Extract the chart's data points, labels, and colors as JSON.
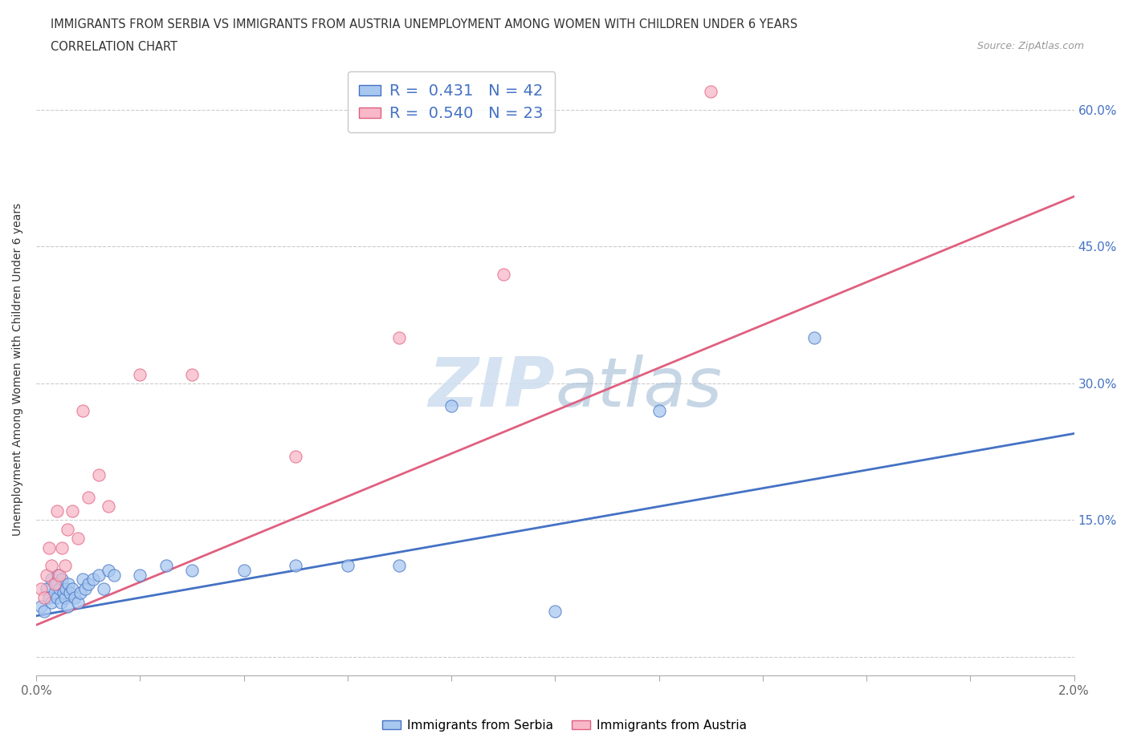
{
  "title_line1": "IMMIGRANTS FROM SERBIA VS IMMIGRANTS FROM AUSTRIA UNEMPLOYMENT AMONG WOMEN WITH CHILDREN UNDER 6 YEARS",
  "title_line2": "CORRELATION CHART",
  "source_text": "Source: ZipAtlas.com",
  "ylabel": "Unemployment Among Women with Children Under 6 years",
  "xlim": [
    0.0,
    0.02
  ],
  "ylim": [
    -0.02,
    0.65
  ],
  "x_ticks": [
    0.0,
    0.002,
    0.004,
    0.006,
    0.008,
    0.01,
    0.012,
    0.014,
    0.016,
    0.018,
    0.02
  ],
  "x_tick_labels": [
    "0.0%",
    "",
    "",
    "",
    "",
    "",
    "",
    "",
    "",
    "",
    "2.0%"
  ],
  "y_ticks": [
    0.0,
    0.15,
    0.3,
    0.45,
    0.6
  ],
  "y_tick_labels": [
    "",
    "15.0%",
    "30.0%",
    "45.0%",
    "60.0%"
  ],
  "serbia_color": "#A8C8F0",
  "austria_color": "#F8B8C8",
  "serbia_R": 0.431,
  "serbia_N": 42,
  "austria_R": 0.54,
  "austria_N": 23,
  "serbia_line_color": "#4472C4",
  "austria_line_color": "#E06080",
  "legend_R_color": "#4472C4",
  "watermark_color": "#D0DFF0",
  "serbia_x": [
    0.0001,
    0.00015,
    0.0002,
    0.00025,
    0.0003,
    0.0003,
    0.00035,
    0.00038,
    0.0004,
    0.00042,
    0.00045,
    0.00048,
    0.0005,
    0.00052,
    0.00055,
    0.00058,
    0.0006,
    0.00062,
    0.00065,
    0.0007,
    0.00075,
    0.0008,
    0.00085,
    0.0009,
    0.00095,
    0.001,
    0.0011,
    0.0012,
    0.0013,
    0.0014,
    0.0015,
    0.002,
    0.0025,
    0.003,
    0.004,
    0.005,
    0.006,
    0.007,
    0.008,
    0.01,
    0.012,
    0.015
  ],
  "serbia_y": [
    0.055,
    0.05,
    0.075,
    0.065,
    0.06,
    0.085,
    0.07,
    0.08,
    0.065,
    0.09,
    0.075,
    0.06,
    0.085,
    0.07,
    0.065,
    0.075,
    0.055,
    0.08,
    0.07,
    0.075,
    0.065,
    0.06,
    0.07,
    0.085,
    0.075,
    0.08,
    0.085,
    0.09,
    0.075,
    0.095,
    0.09,
    0.09,
    0.1,
    0.095,
    0.095,
    0.1,
    0.1,
    0.1,
    0.275,
    0.05,
    0.27,
    0.35
  ],
  "austria_x": [
    0.0001,
    0.00015,
    0.0002,
    0.00025,
    0.0003,
    0.00035,
    0.0004,
    0.00045,
    0.0005,
    0.00055,
    0.0006,
    0.0007,
    0.0008,
    0.0009,
    0.001,
    0.0012,
    0.0014,
    0.002,
    0.003,
    0.005,
    0.007,
    0.009,
    0.013
  ],
  "austria_y": [
    0.075,
    0.065,
    0.09,
    0.12,
    0.1,
    0.08,
    0.16,
    0.09,
    0.12,
    0.1,
    0.14,
    0.16,
    0.13,
    0.27,
    0.175,
    0.2,
    0.165,
    0.31,
    0.31,
    0.22,
    0.35,
    0.42,
    0.62
  ],
  "serbia_line_x": [
    0.0,
    0.02
  ],
  "serbia_line_y": [
    0.045,
    0.245
  ],
  "austria_line_x": [
    0.0,
    0.02
  ],
  "austria_line_y": [
    0.035,
    0.505
  ]
}
